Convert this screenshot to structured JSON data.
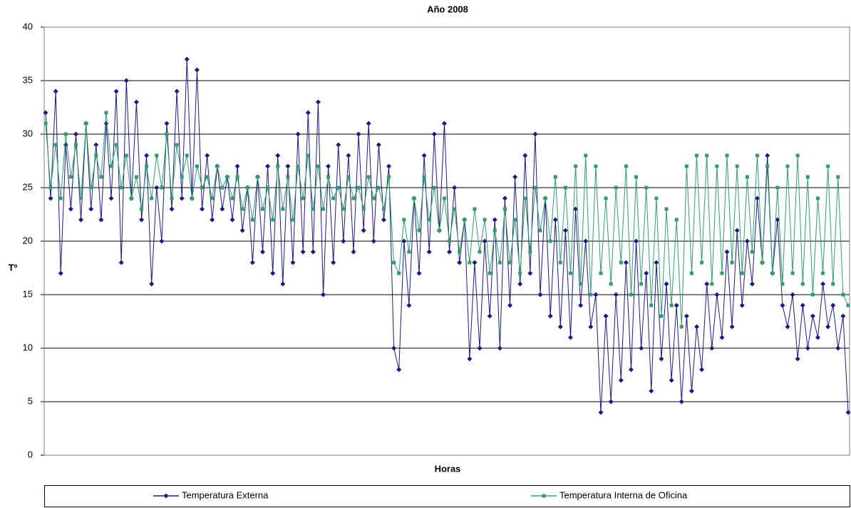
{
  "chart_data": {
    "type": "line",
    "title": "Año 2008",
    "x_label": "Horas",
    "y_label": "Tº",
    "ylim": [
      0,
      40
    ],
    "yticks": [
      0,
      5,
      10,
      15,
      20,
      25,
      30,
      35,
      40
    ],
    "grid": true,
    "legend": "bottom",
    "series": [
      {
        "name": "Temperatura Externa",
        "color": "#1a1a80",
        "marker": "diamond",
        "values": [
          32,
          24,
          34,
          17,
          29,
          23,
          30,
          22,
          31,
          23,
          29,
          22,
          31,
          24,
          34,
          18,
          35,
          24,
          33,
          22,
          28,
          16,
          25,
          20,
          31,
          23,
          34,
          24,
          37,
          24,
          36,
          23,
          28,
          22,
          27,
          23,
          26,
          22,
          27,
          21,
          25,
          18,
          26,
          19,
          27,
          17,
          28,
          16,
          27,
          18,
          30,
          19,
          32,
          19,
          33,
          15,
          27,
          18,
          29,
          20,
          28,
          19,
          30,
          21,
          31,
          20,
          29,
          22,
          27,
          10,
          8,
          20,
          14,
          24,
          17,
          28,
          19,
          30,
          21,
          31,
          19,
          25,
          18,
          22,
          9,
          18,
          10,
          20,
          13,
          22,
          10,
          24,
          14,
          26,
          16,
          28,
          17,
          30,
          15,
          24,
          13,
          22,
          12,
          21,
          11,
          23,
          14,
          20,
          12,
          15,
          4,
          13,
          5,
          15,
          7,
          18,
          8,
          20,
          10,
          17,
          6,
          18,
          9,
          16,
          7,
          14,
          5,
          13,
          6,
          12,
          8,
          16,
          10,
          15,
          11,
          19,
          12,
          21,
          14,
          20,
          16,
          24,
          18,
          28,
          17,
          22,
          14,
          12,
          15,
          9,
          14,
          10,
          13,
          11,
          16,
          12,
          14,
          10,
          13,
          4
        ]
      },
      {
        "name": "Temperatura Interna de Oficina",
        "color": "#339b6e",
        "marker": "square",
        "values": [
          31,
          25,
          29,
          24,
          30,
          26,
          29,
          24,
          31,
          25,
          28,
          26,
          32,
          27,
          29,
          25,
          28,
          24,
          26,
          23,
          27,
          24,
          28,
          25,
          30,
          24,
          29,
          26,
          28,
          24,
          27,
          25,
          26,
          24,
          27,
          25,
          26,
          24,
          26,
          23,
          25,
          22,
          26,
          23,
          25,
          22,
          27,
          23,
          26,
          22,
          27,
          24,
          28,
          23,
          27,
          23,
          26,
          24,
          25,
          23,
          26,
          24,
          25,
          23,
          26,
          24,
          25,
          23,
          26,
          18,
          17,
          22,
          19,
          24,
          21,
          26,
          22,
          25,
          21,
          24,
          20,
          23,
          19,
          22,
          18,
          23,
          19,
          22,
          17,
          21,
          18,
          23,
          18,
          22,
          17,
          24,
          19,
          25,
          21,
          24,
          20,
          26,
          18,
          25,
          17,
          27,
          16,
          28,
          15,
          27,
          17,
          24,
          16,
          25,
          18,
          27,
          15,
          26,
          16,
          25,
          14,
          24,
          13,
          23,
          14,
          22,
          12,
          27,
          17,
          28,
          18,
          28,
          16,
          27,
          17,
          28,
          18,
          27,
          17,
          26,
          19,
          28,
          18,
          27,
          17,
          25,
          16,
          27,
          17,
          28,
          16,
          26,
          15,
          24,
          17,
          27,
          16,
          26,
          15,
          14
        ]
      }
    ]
  }
}
